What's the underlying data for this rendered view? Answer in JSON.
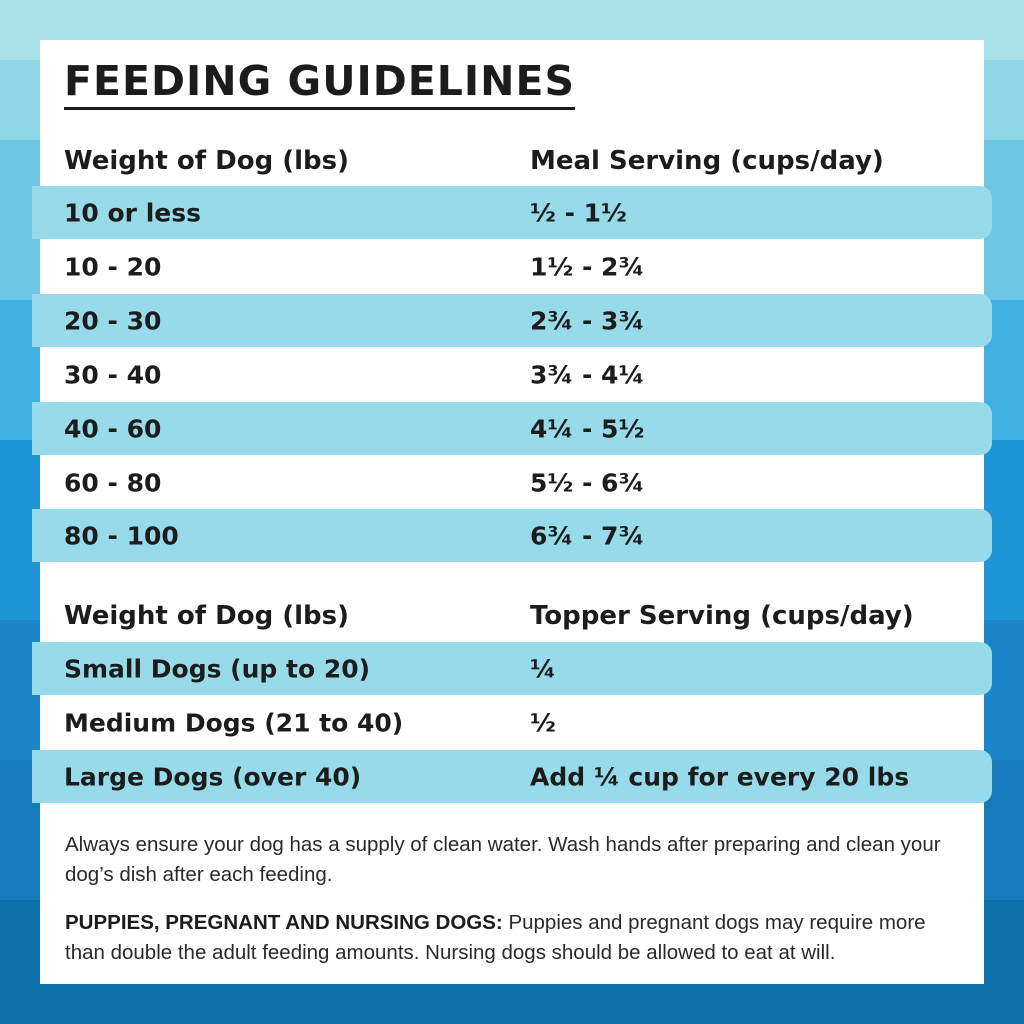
{
  "title": "FEEDING GUIDELINES",
  "meal_table": {
    "headers": [
      "Weight of Dog (lbs)",
      "Meal Serving (cups/day)"
    ],
    "rows": [
      [
        "10 or less",
        "½ - 1½"
      ],
      [
        "10 - 20",
        "1½ - 2¾"
      ],
      [
        "20 - 30",
        "2¾ - 3¾"
      ],
      [
        "30 - 40",
        "3¾ - 4¼"
      ],
      [
        "40 - 60",
        "4¼ - 5½"
      ],
      [
        "60 - 80",
        "5½ - 6¾"
      ],
      [
        "80 - 100",
        "6¾ - 7¾"
      ]
    ]
  },
  "topper_table": {
    "headers": [
      "Weight of Dog (lbs)",
      "Topper Serving (cups/day)"
    ],
    "rows": [
      [
        "Small Dogs (up to 20)",
        "¼"
      ],
      [
        "Medium Dogs (21 to 40)",
        "½"
      ],
      [
        "Large Dogs (over 40)",
        "Add ¼ cup for every 20 lbs"
      ]
    ]
  },
  "notes": {
    "water": "Always ensure your dog has a supply of clean water. Wash hands after preparing and clean your dog’s dish after each feeding.",
    "puppies_label": "PUPPIES, PREGNANT AND NURSING DOGS:",
    "puppies_text": " Puppies and pregnant dogs may require more than double the adult feeding amounts. Nursing dogs should be allowed to eat at will."
  },
  "colors": {
    "row_highlight": "#97dbea",
    "text": "#1c1c1c",
    "card": "#ffffff"
  }
}
